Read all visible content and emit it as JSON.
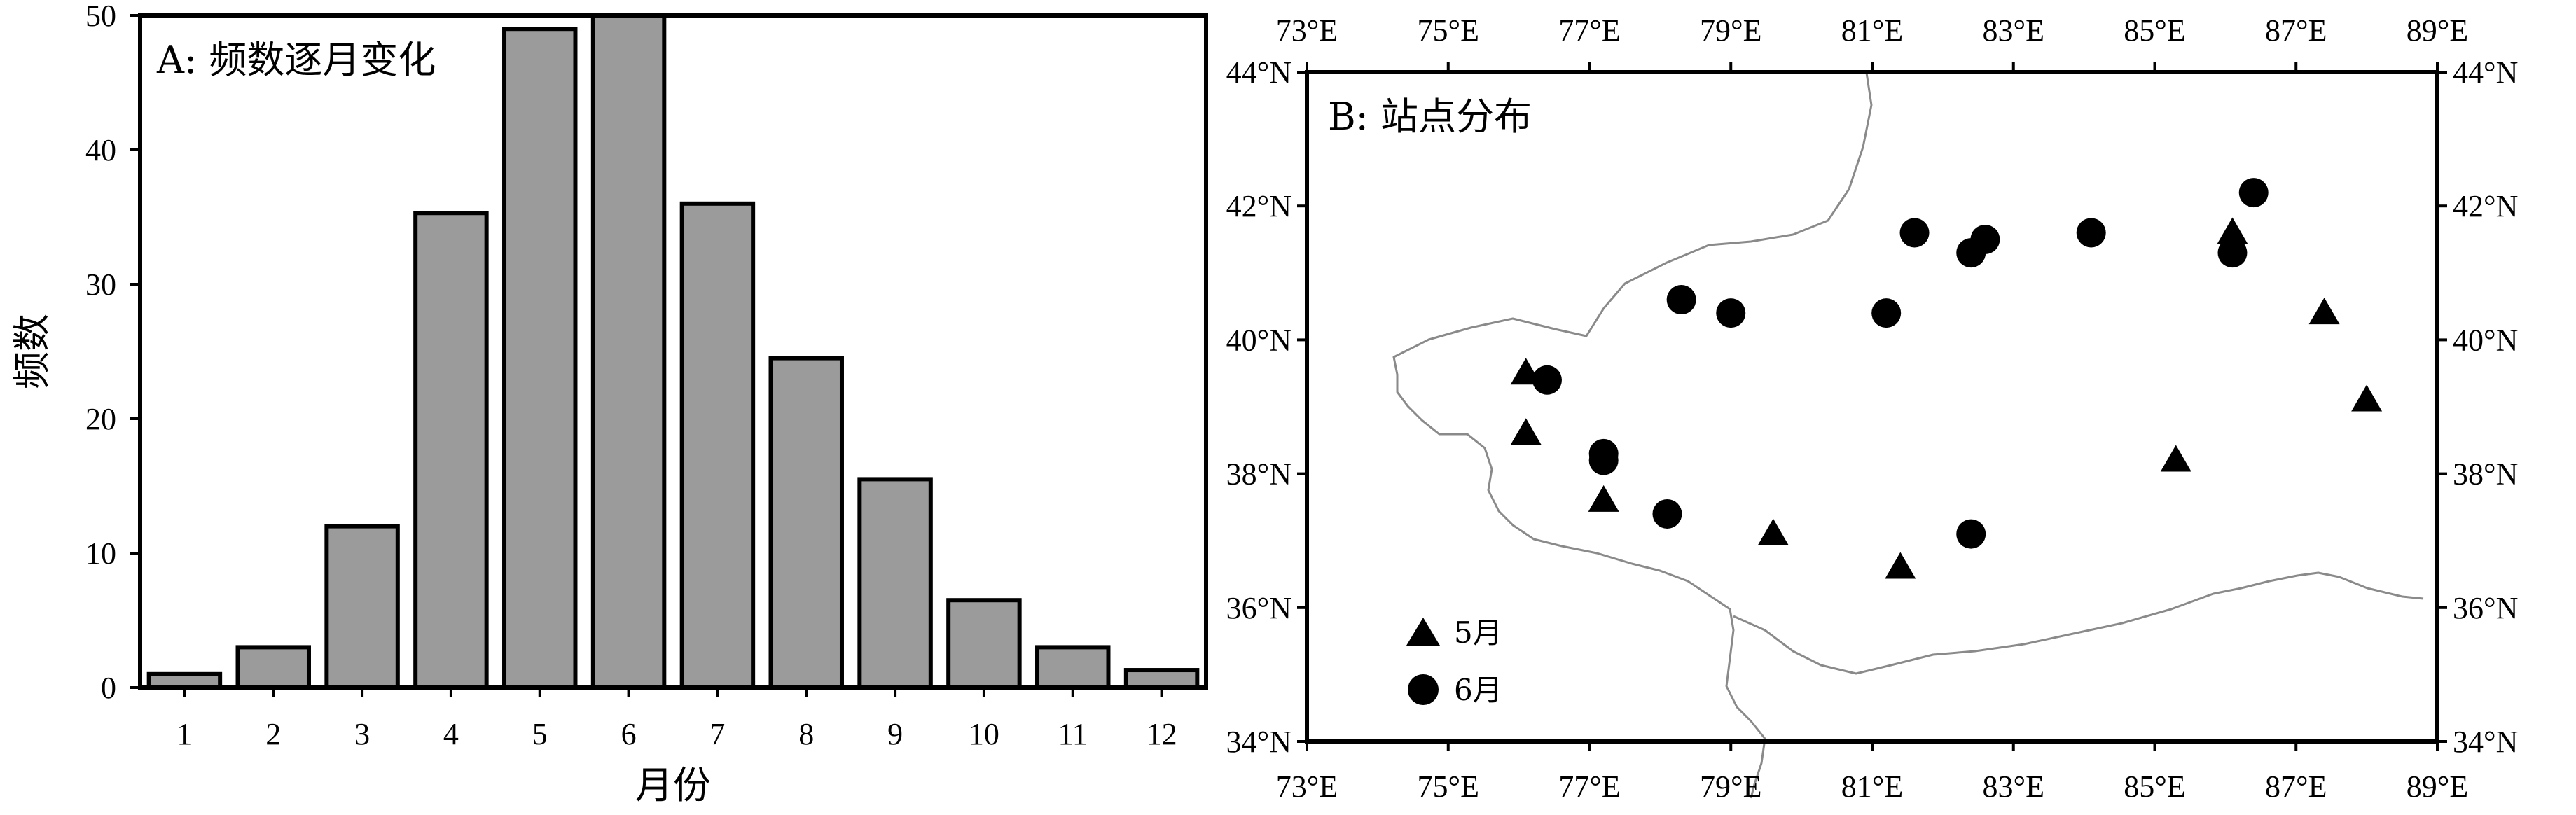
{
  "chart_data": [
    {
      "type": "bar",
      "title": "A: 频数逐月变化",
      "xlabel": "月份",
      "ylabel": "频数",
      "categories": [
        "1",
        "2",
        "3",
        "4",
        "5",
        "6",
        "7",
        "8",
        "9",
        "10",
        "11",
        "12"
      ],
      "values": [
        1,
        3,
        12,
        35.3,
        49,
        50,
        36,
        24.5,
        15.5,
        6.5,
        3,
        1.3
      ],
      "ylim": [
        0,
        50
      ],
      "yticks": [
        "0",
        "10",
        "20",
        "30",
        "40",
        "50"
      ],
      "colors": {
        "bar_fill": "#9b9b9b",
        "bar_edge": "#000000"
      }
    },
    {
      "type": "scatter",
      "title": "B: 站点分布",
      "xlim": [
        73,
        89
      ],
      "ylim": [
        34,
        44
      ],
      "xticks": [
        "73°E",
        "75°E",
        "77°E",
        "79°E",
        "81°E",
        "83°E",
        "85°E",
        "87°E",
        "89°E"
      ],
      "yticks": [
        "34°N",
        "36°N",
        "38°N",
        "40°N",
        "42°N",
        "44°N"
      ],
      "legend_position": "bottom-left",
      "series": [
        {
          "name": "5月",
          "marker": "triangle",
          "points": [
            [
              76.1,
              39.5
            ],
            [
              76.1,
              38.6
            ],
            [
              77.2,
              37.6
            ],
            [
              79.6,
              37.1
            ],
            [
              81.4,
              36.6
            ],
            [
              85.3,
              38.2
            ],
            [
              86.1,
              41.6
            ],
            [
              87.4,
              40.4
            ],
            [
              88.0,
              39.1
            ]
          ]
        },
        {
          "name": "6月",
          "marker": "circle",
          "points": [
            [
              76.4,
              39.4
            ],
            [
              77.2,
              38.3
            ],
            [
              77.2,
              38.2
            ],
            [
              78.1,
              37.4
            ],
            [
              78.3,
              40.6
            ],
            [
              79.0,
              40.4
            ],
            [
              81.2,
              40.4
            ],
            [
              81.6,
              41.6
            ],
            [
              82.4,
              41.3
            ],
            [
              82.6,
              41.5
            ],
            [
              82.4,
              37.1
            ],
            [
              84.1,
              41.6
            ],
            [
              86.1,
              41.3
            ],
            [
              86.4,
              42.2
            ]
          ]
        }
      ],
      "colors": {
        "marker": "#000000",
        "boundary": "#8a8a8a"
      }
    }
  ]
}
